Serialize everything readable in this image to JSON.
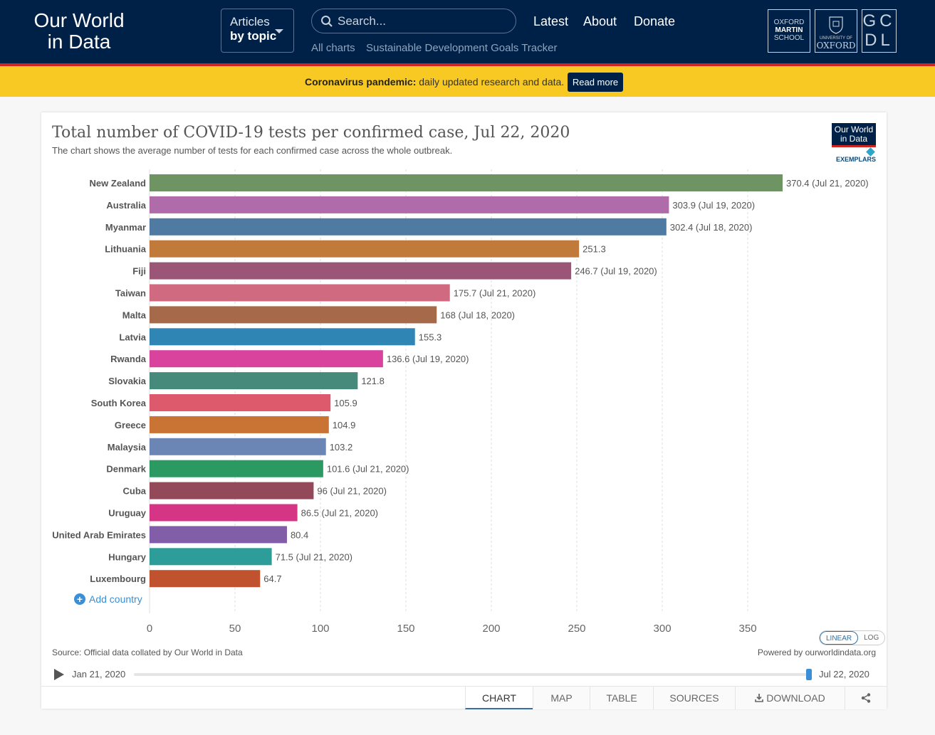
{
  "header": {
    "logo_line1": "Our World",
    "logo_line2": "in Data",
    "articles_line1": "Articles",
    "articles_line2": "by topic",
    "search_placeholder": "Search...",
    "nav": [
      "Latest",
      "About",
      "Donate"
    ],
    "subnav": [
      "All charts",
      "Sustainable Development Goals Tracker"
    ],
    "partner1_l1": "OXFORD",
    "partner1_l2": "MARTIN",
    "partner1_l3": "SCHOOL",
    "partner2_l1": "UNIVERSITY OF",
    "partner2_l2": "OXFORD",
    "partner3": "GCDL"
  },
  "banner": {
    "bold": "Coronavirus pandemic:",
    "text": " daily updated research and data.",
    "button": "Read more"
  },
  "chart": {
    "title": "Total number of COVID-19 tests per confirmed case, Jul 22, 2020",
    "subtitle": "The chart shows the average number of tests for each confirmed case across the whole outbreak.",
    "badge_line1": "Our World",
    "badge_line2": "in Data",
    "exemplars": "EXEMPLARS",
    "add_country": "Add country",
    "scale_linear": "LINEAR",
    "scale_log": "LOG",
    "source": "Source: Official data collated by Our World in Data",
    "powered": "Powered by ourworldindata.org",
    "timeline_start": "Jan 21, 2020",
    "timeline_end": "Jul 22, 2020",
    "tabs": [
      "CHART",
      "MAP",
      "TABLE",
      "SOURCES",
      "DOWNLOAD"
    ]
  },
  "chart_data": {
    "type": "bar",
    "orientation": "horizontal",
    "title": "Total number of COVID-19 tests per confirmed case, Jul 22, 2020",
    "xlim": [
      0,
      370.4
    ],
    "xticks": [
      0,
      50,
      100,
      150,
      200,
      250,
      300,
      350
    ],
    "grid": "vertical dashed",
    "categories": [
      "New Zealand",
      "Australia",
      "Myanmar",
      "Lithuania",
      "Fiji",
      "Taiwan",
      "Malta",
      "Latvia",
      "Rwanda",
      "Slovakia",
      "South Korea",
      "Greece",
      "Malaysia",
      "Denmark",
      "Cuba",
      "Uruguay",
      "United Arab Emirates",
      "Hungary",
      "Luxembourg"
    ],
    "values": [
      370.4,
      303.9,
      302.4,
      251.3,
      246.7,
      175.7,
      168,
      155.3,
      136.6,
      121.8,
      105.9,
      104.9,
      103.2,
      101.6,
      96,
      86.5,
      80.4,
      71.5,
      64.7
    ],
    "labels": [
      "370.4 (Jul 21, 2020)",
      "303.9 (Jul 19, 2020)",
      "302.4 (Jul 18, 2020)",
      "251.3",
      "246.7 (Jul 19, 2020)",
      "175.7 (Jul 21, 2020)",
      "168 (Jul 18, 2020)",
      "155.3",
      "136.6 (Jul 19, 2020)",
      "121.8",
      "105.9",
      "104.9",
      "103.2",
      "101.6 (Jul 21, 2020)",
      "96 (Jul 21, 2020)",
      "86.5 (Jul 21, 2020)",
      "80.4",
      "71.5 (Jul 21, 2020)",
      "64.7"
    ],
    "colors": [
      "#6d9462",
      "#b06bab",
      "#4f7aa2",
      "#c17a39",
      "#9b5677",
      "#cf6a80",
      "#a6694a",
      "#2f86b5",
      "#d9439d",
      "#468a7c",
      "#dd5a6c",
      "#c97335",
      "#6b85b5",
      "#2a9962",
      "#94495a",
      "#d63585",
      "#835ea8",
      "#2c9d99",
      "#c1522e"
    ]
  }
}
